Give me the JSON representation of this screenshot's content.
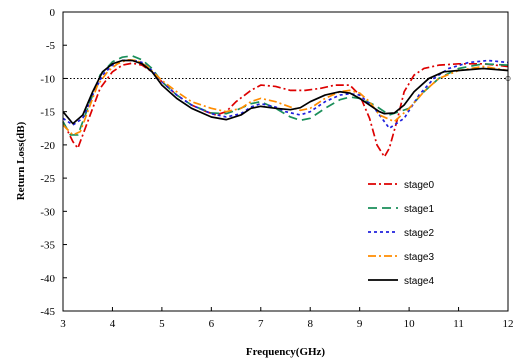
{
  "chart_data": {
    "type": "line",
    "xlabel": "Frequency(GHz)",
    "ylabel": "Return Loss(dB)",
    "xlim": [
      3,
      12
    ],
    "ylim": [
      -45,
      0
    ],
    "xticks": [
      3,
      4,
      5,
      6,
      7,
      8,
      9,
      10,
      11,
      12
    ],
    "yticks": [
      0,
      -5,
      -10,
      -15,
      -20,
      -25,
      -30,
      -35,
      -40,
      -45
    ],
    "xtick_labels": [
      "3",
      "4",
      "5",
      "6",
      "7",
      "8",
      "9",
      "10",
      "11",
      "12"
    ],
    "ytick_labels": [
      "0",
      "-5",
      "-10",
      "-15",
      "-20",
      "-25",
      "-30",
      "-35",
      "-40",
      "-45"
    ],
    "reference_line": {
      "y": -10,
      "style": "dotted"
    },
    "grid": false,
    "legend_position": "lower-right",
    "series": [
      {
        "name": "stage0",
        "color": "#dd0000",
        "dash": "8,3,2,3",
        "x": [
          3.0,
          3.2,
          3.3,
          3.5,
          3.75,
          4.0,
          4.2,
          4.4,
          4.6,
          4.8,
          5.0,
          5.3,
          5.6,
          5.9,
          6.1,
          6.3,
          6.5,
          6.8,
          7.0,
          7.3,
          7.6,
          7.9,
          8.2,
          8.5,
          8.8,
          9.0,
          9.2,
          9.35,
          9.5,
          9.6,
          9.75,
          9.9,
          10.1,
          10.3,
          10.6,
          11.0,
          11.5,
          12.0
        ],
        "y": [
          -16.5,
          -19.5,
          -20.5,
          -16.5,
          -11.5,
          -9.0,
          -8.0,
          -7.7,
          -8.0,
          -9.0,
          -10.5,
          -12.5,
          -14.0,
          -15.0,
          -15.5,
          -15.0,
          -13.5,
          -11.8,
          -11.0,
          -11.2,
          -11.8,
          -11.8,
          -11.5,
          -11.0,
          -11.0,
          -12.5,
          -16.0,
          -20.0,
          -21.8,
          -20.5,
          -16.5,
          -12.0,
          -9.5,
          -8.5,
          -8.0,
          -7.8,
          -7.8,
          -8.2
        ]
      },
      {
        "name": "stage1",
        "color": "#1a8f5a",
        "dash": "9,5",
        "x": [
          3.0,
          3.15,
          3.3,
          3.5,
          3.75,
          4.0,
          4.2,
          4.4,
          4.6,
          4.8,
          5.0,
          5.3,
          5.6,
          6.0,
          6.3,
          6.5,
          6.8,
          7.0,
          7.3,
          7.6,
          7.8,
          8.0,
          8.3,
          8.6,
          8.8,
          9.0,
          9.3,
          9.6,
          10.0,
          10.3,
          10.6,
          11.0,
          11.5,
          12.0
        ],
        "y": [
          -16.5,
          -18.5,
          -18.5,
          -14.5,
          -9.5,
          -7.5,
          -6.8,
          -6.6,
          -7.2,
          -8.5,
          -10.5,
          -12.5,
          -14.0,
          -15.2,
          -15.3,
          -14.8,
          -13.8,
          -13.5,
          -14.5,
          -15.8,
          -16.3,
          -16.0,
          -14.5,
          -13.2,
          -12.8,
          -13.0,
          -14.0,
          -15.5,
          -14.5,
          -12.0,
          -10.0,
          -8.5,
          -7.8,
          -8.0
        ]
      },
      {
        "name": "stage2",
        "color": "#2020dd",
        "dash": "3,3",
        "x": [
          3.0,
          3.2,
          3.4,
          3.6,
          3.8,
          4.0,
          4.2,
          4.4,
          4.6,
          4.8,
          5.0,
          5.3,
          5.6,
          6.0,
          6.3,
          6.6,
          6.8,
          7.0,
          7.3,
          7.5,
          7.8,
          8.0,
          8.3,
          8.6,
          8.8,
          9.0,
          9.3,
          9.6,
          9.9,
          10.2,
          10.5,
          10.8,
          11.2,
          11.6,
          12.0
        ],
        "y": [
          -16.0,
          -17.0,
          -16.0,
          -12.5,
          -9.5,
          -8.0,
          -7.3,
          -7.2,
          -7.6,
          -8.8,
          -10.5,
          -12.5,
          -14.0,
          -15.3,
          -15.8,
          -15.3,
          -14.3,
          -13.8,
          -14.3,
          -15.0,
          -15.5,
          -15.0,
          -13.5,
          -12.5,
          -12.3,
          -12.5,
          -14.5,
          -17.5,
          -16.0,
          -12.5,
          -10.0,
          -8.5,
          -7.6,
          -7.3,
          -7.6
        ]
      },
      {
        "name": "stage3",
        "color": "#ff8c00",
        "dash": "8,3,2,3",
        "x": [
          3.0,
          3.2,
          3.35,
          3.5,
          3.7,
          3.9,
          4.1,
          4.3,
          4.5,
          4.7,
          5.0,
          5.3,
          5.6,
          6.0,
          6.3,
          6.6,
          6.8,
          7.0,
          7.3,
          7.6,
          7.8,
          8.0,
          8.3,
          8.6,
          8.8,
          9.0,
          9.2,
          9.4,
          9.7,
          10.0,
          10.3,
          10.6,
          11.0,
          11.5,
          12.0
        ],
        "y": [
          -17.0,
          -18.5,
          -18.0,
          -15.0,
          -11.0,
          -9.0,
          -7.8,
          -7.2,
          -7.3,
          -8.2,
          -10.3,
          -12.0,
          -13.5,
          -14.5,
          -15.0,
          -14.5,
          -13.5,
          -13.0,
          -13.5,
          -14.3,
          -14.8,
          -14.5,
          -13.0,
          -12.0,
          -11.8,
          -12.2,
          -13.5,
          -15.5,
          -16.5,
          -14.5,
          -12.0,
          -10.0,
          -8.8,
          -8.2,
          -8.8
        ]
      },
      {
        "name": "stage4",
        "color": "#000000",
        "dash": "",
        "x": [
          3.0,
          3.2,
          3.4,
          3.6,
          3.8,
          4.0,
          4.2,
          4.4,
          4.6,
          4.8,
          5.0,
          5.3,
          5.6,
          6.0,
          6.3,
          6.6,
          6.8,
          7.0,
          7.3,
          7.6,
          7.8,
          8.0,
          8.3,
          8.6,
          8.8,
          9.0,
          9.2,
          9.4,
          9.5,
          9.7,
          9.9,
          10.1,
          10.4,
          10.7,
          11.0,
          11.5,
          12.0
        ],
        "y": [
          -15.0,
          -16.8,
          -15.5,
          -12.0,
          -9.0,
          -7.8,
          -7.3,
          -7.3,
          -7.8,
          -9.0,
          -11.0,
          -13.0,
          -14.5,
          -15.8,
          -16.2,
          -15.5,
          -14.5,
          -14.2,
          -14.5,
          -14.7,
          -14.4,
          -13.5,
          -12.5,
          -12.0,
          -12.2,
          -13.0,
          -14.0,
          -15.0,
          -15.3,
          -15.2,
          -14.0,
          -12.0,
          -10.0,
          -9.0,
          -8.8,
          -8.5,
          -8.8
        ]
      }
    ]
  }
}
